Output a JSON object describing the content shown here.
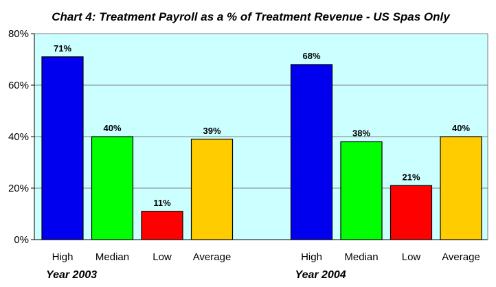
{
  "chart_data": {
    "type": "bar",
    "title": "Chart 4:  Treatment Payroll as a % of Treatment Revenue - US Spas  Only",
    "xlabel": "",
    "ylabel": "",
    "ylim": [
      0,
      80
    ],
    "yticks": [
      "0%",
      "20%",
      "40%",
      "60%",
      "80%"
    ],
    "grid": true,
    "legend": "none",
    "plot_background": "#ccffff",
    "groups": [
      {
        "label": "Year 2003",
        "bars": [
          {
            "category": "High",
            "value": 71,
            "label": "71%",
            "color": "#0000ee"
          },
          {
            "category": "Median",
            "value": 40,
            "label": "40%",
            "color": "#00ff00"
          },
          {
            "category": "Low",
            "value": 11,
            "label": "11%",
            "color": "#ff0000"
          },
          {
            "category": "Average",
            "value": 39,
            "label": "39%",
            "color": "#ffcc00"
          }
        ]
      },
      {
        "label": "Year 2004",
        "bars": [
          {
            "category": "High",
            "value": 68,
            "label": "68%",
            "color": "#0000ee"
          },
          {
            "category": "Median",
            "value": 38,
            "label": "38%",
            "color": "#00ff00"
          },
          {
            "category": "Low",
            "value": 21,
            "label": "21%",
            "color": "#ff0000"
          },
          {
            "category": "Average",
            "value": 40,
            "label": "40%",
            "color": "#ffcc00"
          }
        ]
      }
    ]
  }
}
